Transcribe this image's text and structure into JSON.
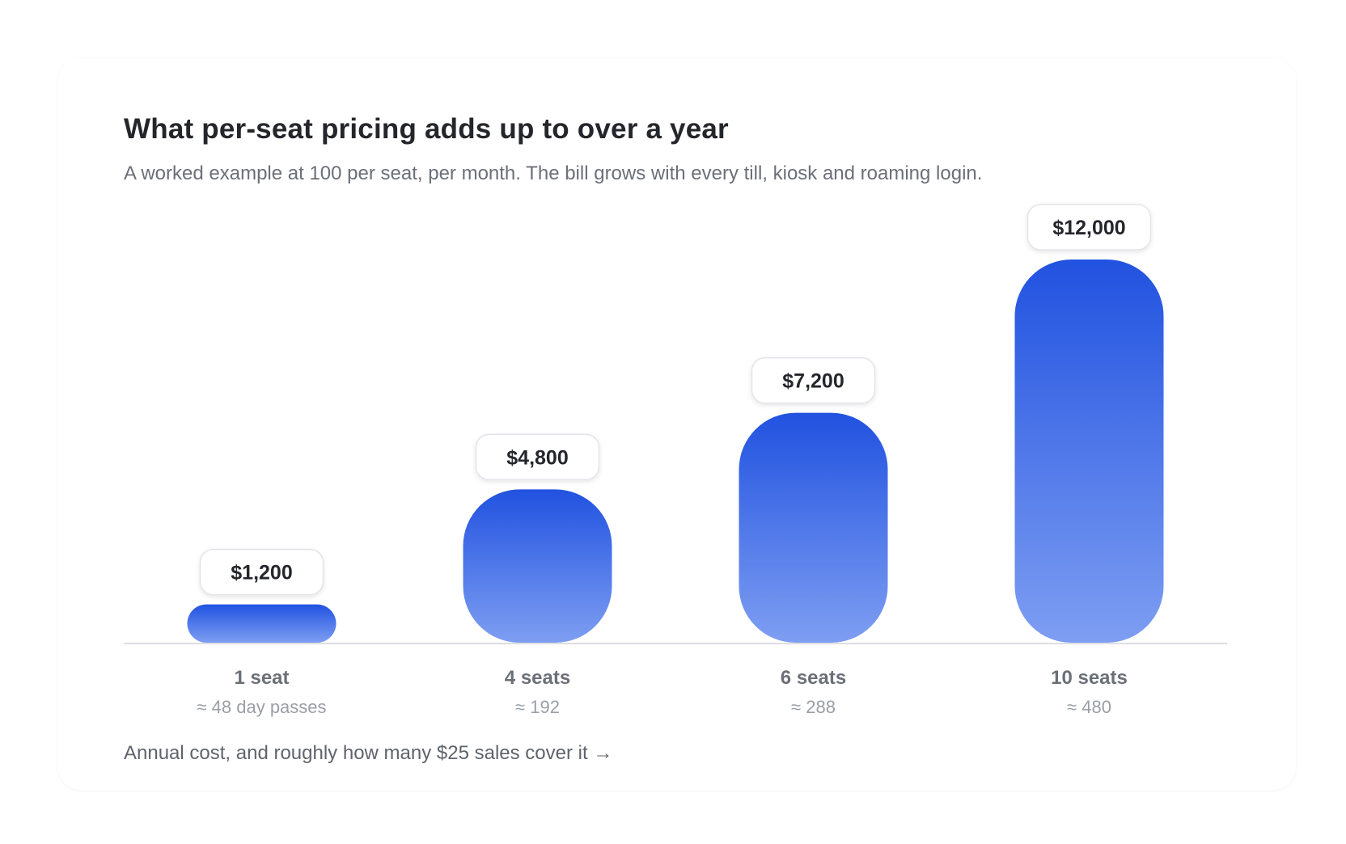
{
  "title": "What per-seat pricing adds up to over a year",
  "subtitle": "A worked example at 100 per seat, per month. The bill grows with every till, kiosk and roaming login.",
  "footnote": "Annual cost, and roughly how many $25 sales cover it →",
  "colors": {
    "bar_top": "#2152e0",
    "bar_bottom": "#7e9ef2",
    "baseline": "#dcdee3",
    "value_text": "#24262b",
    "category_text": "#6b6f78",
    "sub_text": "#9a9ea6"
  },
  "chart_data": {
    "type": "bar",
    "categories": [
      "1 seat",
      "4 seats",
      "6 seats",
      "10 seats"
    ],
    "values": [
      1200,
      4800,
      7200,
      12000
    ],
    "value_labels": [
      "$1,200",
      "$4,800",
      "$7,200",
      "$12,000"
    ],
    "sublabels": [
      "≈ 48 day passes",
      "≈ 192",
      "≈ 288",
      "≈ 480"
    ],
    "title": "What per-seat pricing adds up to over a year",
    "xlabel": "",
    "ylabel": "",
    "ylim": [
      0,
      12000
    ],
    "grid": false,
    "legend": "none"
  }
}
